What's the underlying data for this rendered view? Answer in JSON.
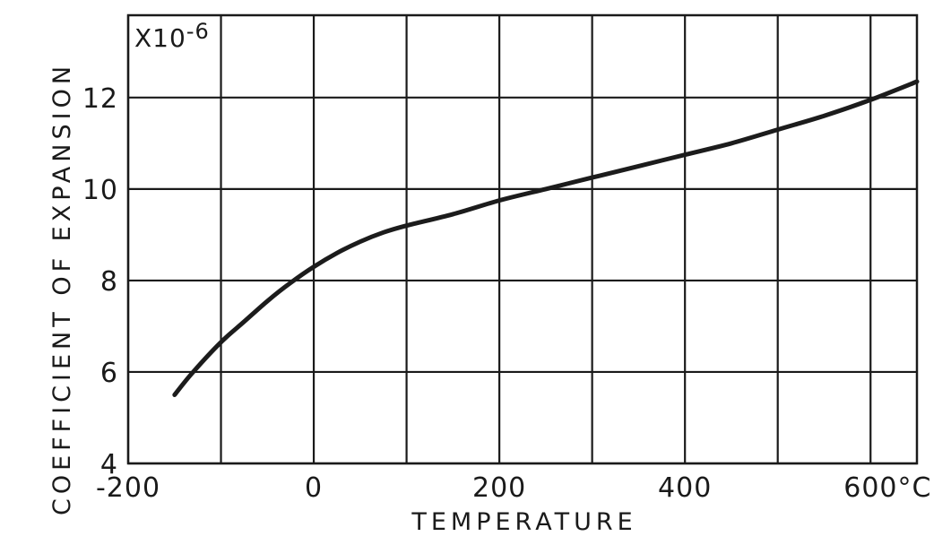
{
  "chart_data": {
    "type": "line",
    "xlabel": "TEMPERATURE",
    "ylabel": "COEFFICIENT OF EXPANSION",
    "y_scale_label": "X10",
    "y_scale_exponent": "-6",
    "x_unit": "°C",
    "xlim": [
      -200,
      650
    ],
    "ylim": [
      4,
      13.8
    ],
    "grid": true,
    "x_ticks": [
      -200,
      0,
      200,
      400,
      600
    ],
    "x_tick_labels": [
      "-200",
      "0",
      "200",
      "400",
      "600°C"
    ],
    "y_ticks": [
      4,
      6,
      8,
      10,
      12
    ],
    "y_tick_labels": [
      "4",
      "6",
      "8",
      "10",
      "12"
    ],
    "x_grid": [
      -200,
      -100,
      0,
      100,
      200,
      300,
      400,
      500,
      600
    ],
    "y_grid": [
      4,
      6,
      8,
      10,
      12
    ],
    "series": [
      {
        "x": [
          -150,
          -130,
          -100,
          -75,
          -50,
          -25,
          0,
          25,
          50,
          75,
          100,
          150,
          200,
          250,
          300,
          350,
          400,
          450,
          500,
          550,
          600,
          650
        ],
        "y": [
          5.5,
          6.0,
          6.65,
          7.1,
          7.55,
          7.95,
          8.3,
          8.6,
          8.85,
          9.05,
          9.2,
          9.45,
          9.75,
          10.0,
          10.25,
          10.5,
          10.75,
          11.0,
          11.3,
          11.6,
          11.95,
          12.35
        ]
      }
    ]
  }
}
